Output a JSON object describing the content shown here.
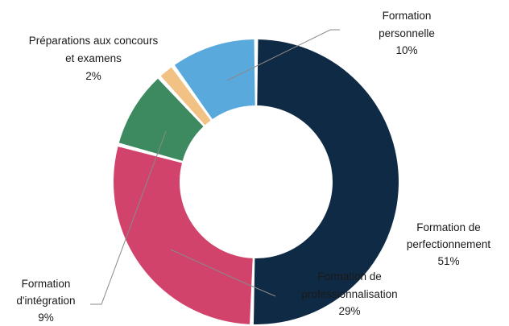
{
  "chart_data": {
    "type": "pie",
    "variant": "donut",
    "title": "",
    "start_angle_deg": 0,
    "direction": "clockwise",
    "slices": [
      {
        "name_lines": [
          "Formation de",
          "perfectionnement"
        ],
        "value_label": "51%",
        "value": 51,
        "color": "#0f2a44"
      },
      {
        "name_lines": [
          "Formation de",
          "professionnalisation"
        ],
        "value_label": "29%",
        "value": 29,
        "color": "#d1436a"
      },
      {
        "name_lines": [
          "Formation",
          "d'intégration"
        ],
        "value_label": "9%",
        "value": 9,
        "color": "#3e8a60"
      },
      {
        "name_lines": [
          "Préparations aux concours",
          "et examens"
        ],
        "value_label": "2%",
        "value": 2,
        "color": "#f2c184"
      },
      {
        "name_lines": [
          "Formation",
          "personnelle"
        ],
        "value_label": "10%",
        "value": 10,
        "color": "#5aa9dc"
      }
    ]
  }
}
